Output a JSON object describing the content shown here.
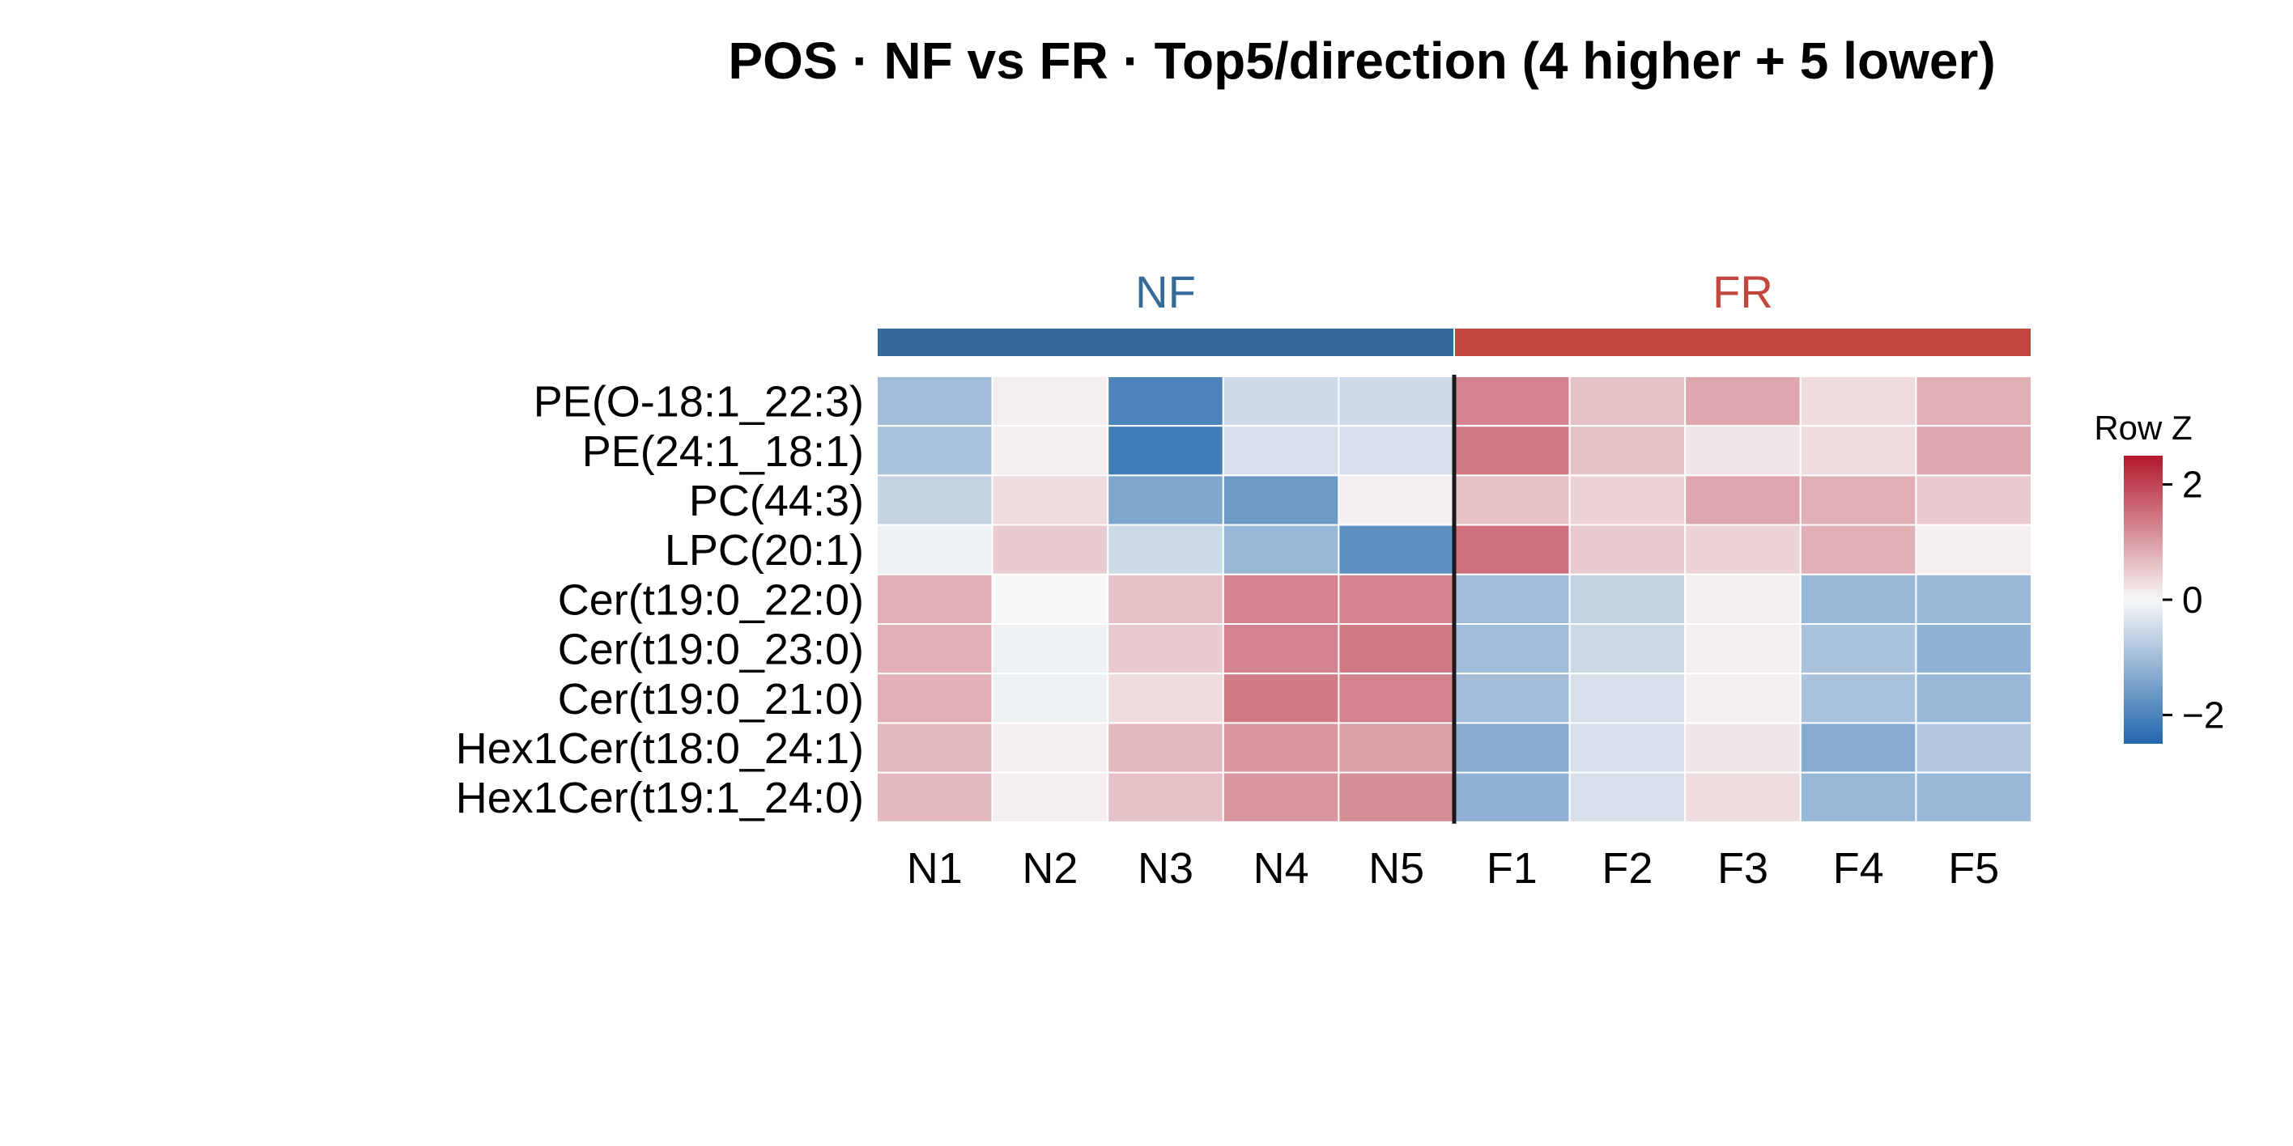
{
  "chart_data": {
    "type": "heatmap",
    "title": "POS · NF vs FR · Top5/direction (4 higher + 5 lower)",
    "rows": [
      "PE(O-18:1_22:3)",
      "PE(24:1_18:1)",
      "PC(44:3)",
      "LPC(20:1)",
      "Cer(t19:0_22:0)",
      "Cer(t19:0_23:0)",
      "Cer(t19:0_21:0)",
      "Hex1Cer(t18:0_24:1)",
      "Hex1Cer(t19:1_24:0)"
    ],
    "columns": [
      "N1",
      "N2",
      "N3",
      "N4",
      "N5",
      "F1",
      "F2",
      "F3",
      "F4",
      "F5"
    ],
    "groups": [
      {
        "name": "NF",
        "columns": [
          "N1",
          "N2",
          "N3",
          "N4",
          "N5"
        ],
        "color": "#356A99"
      },
      {
        "name": "FR",
        "columns": [
          "F1",
          "F2",
          "F3",
          "F4",
          "F5"
        ],
        "color": "#C1463D"
      }
    ],
    "values": [
      [
        -1.0,
        0.1,
        -2.0,
        -0.5,
        -0.5,
        1.3,
        0.6,
        0.9,
        0.3,
        0.8
      ],
      [
        -0.9,
        0.1,
        -2.1,
        -0.4,
        -0.4,
        1.4,
        0.6,
        0.2,
        0.3,
        0.9
      ],
      [
        -0.6,
        0.3,
        -1.4,
        -1.6,
        0.1,
        0.6,
        0.4,
        0.9,
        0.8,
        0.5
      ],
      [
        -0.1,
        0.5,
        -0.5,
        -1.1,
        -1.8,
        1.5,
        0.5,
        0.4,
        0.8,
        0.1
      ],
      [
        0.8,
        0.0,
        0.6,
        1.3,
        1.3,
        -1.0,
        -0.6,
        0.1,
        -1.1,
        -1.1
      ],
      [
        0.8,
        -0.1,
        0.5,
        1.3,
        1.4,
        -1.0,
        -0.5,
        0.1,
        -0.9,
        -1.2
      ],
      [
        0.8,
        -0.1,
        0.3,
        1.4,
        1.3,
        -1.0,
        -0.4,
        0.1,
        -0.9,
        -1.1
      ],
      [
        0.7,
        0.1,
        0.7,
        1.1,
        1.0,
        -1.3,
        -0.4,
        0.2,
        -1.3,
        -0.8
      ],
      [
        0.7,
        0.1,
        0.6,
        1.1,
        1.2,
        -1.2,
        -0.4,
        0.3,
        -1.1,
        -1.1
      ]
    ],
    "color_scale": {
      "name": "Row Z",
      "domain": [
        -2.5,
        0,
        2.5
      ],
      "colors": [
        "#2166AC",
        "#F7F7F7",
        "#B2182B"
      ],
      "ticks": [
        2,
        0,
        -2
      ],
      "tick_labels": [
        "2",
        "0",
        "−2"
      ]
    },
    "split_after_column": "N5"
  }
}
